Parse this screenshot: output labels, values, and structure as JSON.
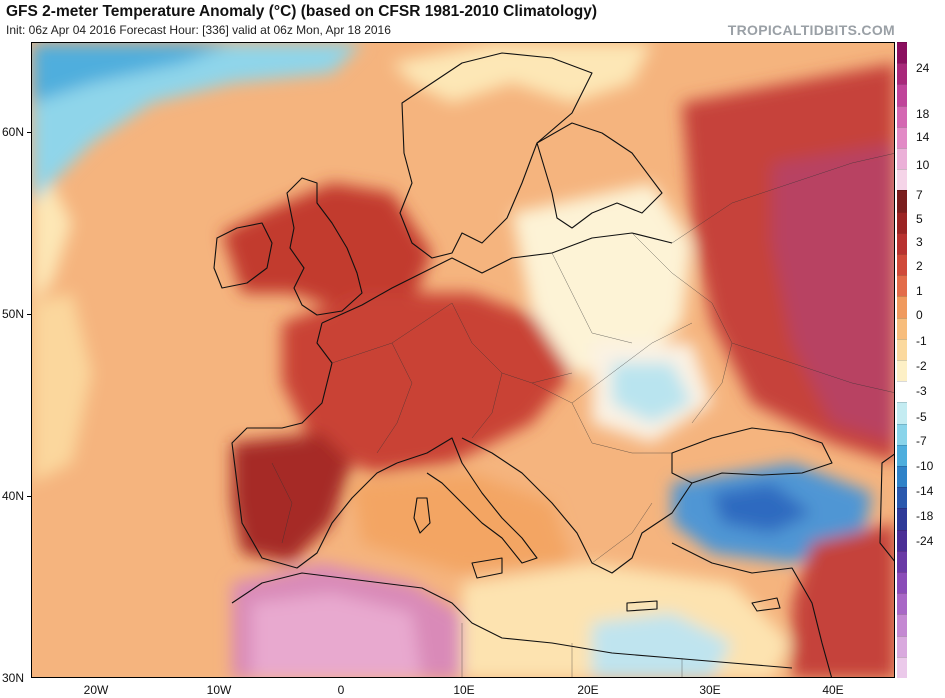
{
  "header": {
    "title": "GFS 2-meter Temperature Anomaly (°C) (based on CFSR 1981-2010 Climatology)",
    "subtitle": "Init: 06z Apr 04 2016   Forecast Hour: [336]   valid at 06z Mon, Apr 18 2016",
    "brand": "TROPICALTIDBITS.COM"
  },
  "map": {
    "region": "Europe / North Africa / Near East",
    "lat_labels": [
      "60N",
      "50N",
      "40N",
      "30N"
    ],
    "lon_labels": [
      "20W",
      "10W",
      "0",
      "10E",
      "20E",
      "30E",
      "40E"
    ],
    "lat_range": [
      30,
      65
    ],
    "lon_range": [
      -25,
      45
    ]
  },
  "colorbar": {
    "labels": [
      "24",
      "18",
      "14",
      "10",
      "7",
      "5",
      "3",
      "2",
      "1",
      "0",
      "-1",
      "-2",
      "-3",
      "-5",
      "-7",
      "-10",
      "-14",
      "-18",
      "-24"
    ],
    "colors": [
      "#8b0f5f",
      "#a8287a",
      "#c0449a",
      "#d467b2",
      "#e28ac6",
      "#ebb0d8",
      "#f5d4e8",
      "#7a1e1e",
      "#9b2424",
      "#b83230",
      "#d04a3a",
      "#e36c4a",
      "#f09a5e",
      "#f7bd7c",
      "#fbd99e",
      "#fdf0c6",
      "#ffffff",
      "#c4ecf2",
      "#8ad4ea",
      "#4eaedd",
      "#2f82c8",
      "#2a58ad",
      "#2f3a99",
      "#4b2f96",
      "#6a3aa6",
      "#8a4cb8",
      "#a867c6",
      "#c488d2",
      "#d9a9de",
      "#ebc9ea"
    ]
  }
}
